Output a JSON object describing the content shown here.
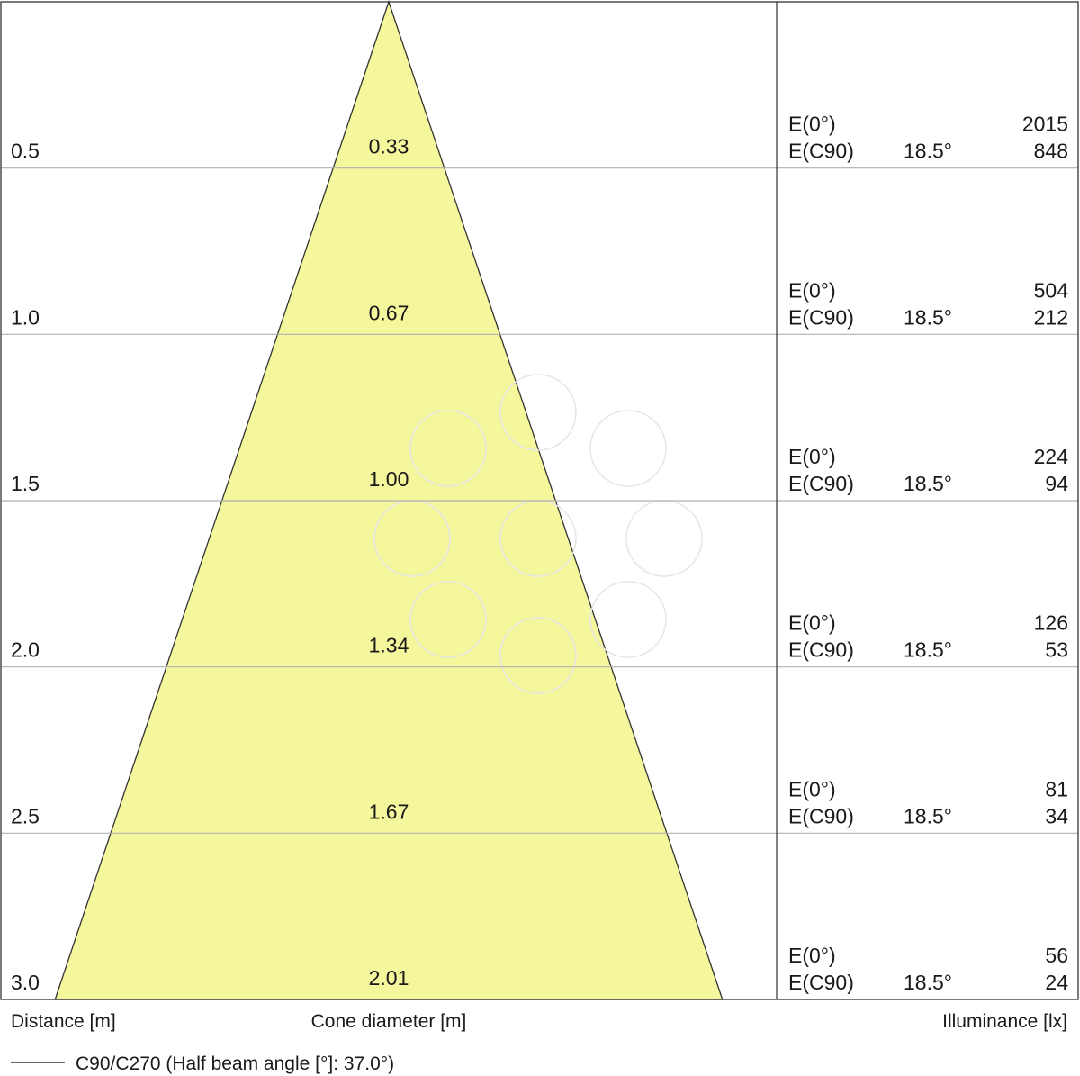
{
  "chart_data": {
    "type": "cone-diagram",
    "distance_unit_label": "Distance [m]",
    "cone_label": "Cone diameter [m]",
    "illuminance_label": "Illuminance [lx]",
    "legend_text": "C90/C270 (Half beam angle [°]: 37.0°)",
    "half_beam_angle_deg": 37.0,
    "max_distance": 3.0,
    "e0_label": "E(0°)",
    "ec90_label": "E(C90)",
    "rows": [
      {
        "distance": "0.5",
        "diameter": "0.33",
        "e0": "2015",
        "ec90_angle": "18.5°",
        "ec90": "848"
      },
      {
        "distance": "1.0",
        "diameter": "0.67",
        "e0": "504",
        "ec90_angle": "18.5°",
        "ec90": "212"
      },
      {
        "distance": "1.5",
        "diameter": "1.00",
        "e0": "224",
        "ec90_angle": "18.5°",
        "ec90": "94"
      },
      {
        "distance": "2.0",
        "diameter": "1.34",
        "e0": "126",
        "ec90_angle": "18.5°",
        "ec90": "53"
      },
      {
        "distance": "2.5",
        "diameter": "1.67",
        "e0": "81",
        "ec90_angle": "18.5°",
        "ec90": "34"
      },
      {
        "distance": "3.0",
        "diameter": "2.01",
        "e0": "56",
        "ec90_angle": "18.5°",
        "ec90": "24"
      }
    ],
    "colors": {
      "cone_fill": "#f5f79c",
      "cone_stroke": "#333333",
      "grid": "#b0b0b0",
      "frame": "#333333",
      "watermark": "#e6e6e6"
    }
  }
}
